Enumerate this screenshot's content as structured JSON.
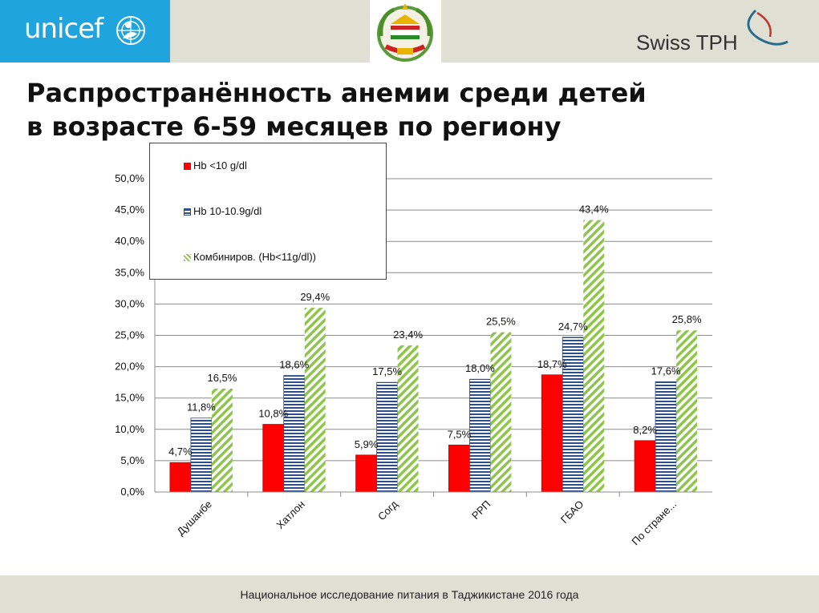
{
  "header": {
    "unicef_logo_text": "unicef",
    "swiss_logo_text": "Swiss TPH"
  },
  "title_line1": "Распространённость анемии среди детей",
  "title_line2": "в возрасте 6-59 месяцев по региону",
  "footer": {
    "text": "Национальное исследование питания в Таджикистане 2016 года"
  },
  "colors": {
    "red": "#ff0000",
    "blue_stripe": "#2e4e8a",
    "green_hatch": "#8ec64a",
    "unicef_blue": "#1fa4dd",
    "band": "#dfe0d3"
  },
  "chart_data": {
    "type": "bar",
    "title": "",
    "xlabel": "",
    "ylabel": "",
    "ylim": [
      0,
      50
    ],
    "y_ticks": [
      "0,0%",
      "5,0%",
      "10,0%",
      "15,0%",
      "20,0%",
      "25,0%",
      "30,0%",
      "35,0%",
      "40,0%",
      "45,0%",
      "50,0%"
    ],
    "grid": true,
    "legend_position": "top-left",
    "categories": [
      "Душанбе",
      "Хатлон",
      "Согд",
      "РРП",
      "ГБАО",
      "По стране..."
    ],
    "series": [
      {
        "name": "Hb <10 g/dl",
        "values": [
          4.7,
          10.8,
          5.9,
          7.5,
          18.7,
          8.2
        ],
        "labels": [
          "4,7%",
          "10,8%",
          "5,9%",
          "7,5%",
          "18,7%",
          "8,2%"
        ],
        "pattern": "solid",
        "color": "#ff0000"
      },
      {
        "name": "Hb 10-10.9g/dl",
        "values": [
          11.8,
          18.6,
          17.5,
          18.0,
          24.7,
          17.6
        ],
        "labels": [
          "11,8%",
          "18,6%",
          "17,5%",
          "18,0%",
          "24,7%",
          "17,6%"
        ],
        "pattern": "horizontal-stripes",
        "color": "#2e4e8a"
      },
      {
        "name": "Комбиниров. (Hb<11g/dl))",
        "values": [
          16.5,
          29.4,
          23.4,
          25.5,
          43.4,
          25.8
        ],
        "labels": [
          "16,5%",
          "29,4%",
          "23,4%",
          "25,5%",
          "43,4%",
          "25,8%"
        ],
        "pattern": "diagonal-hatch",
        "color": "#8ec64a"
      }
    ]
  }
}
